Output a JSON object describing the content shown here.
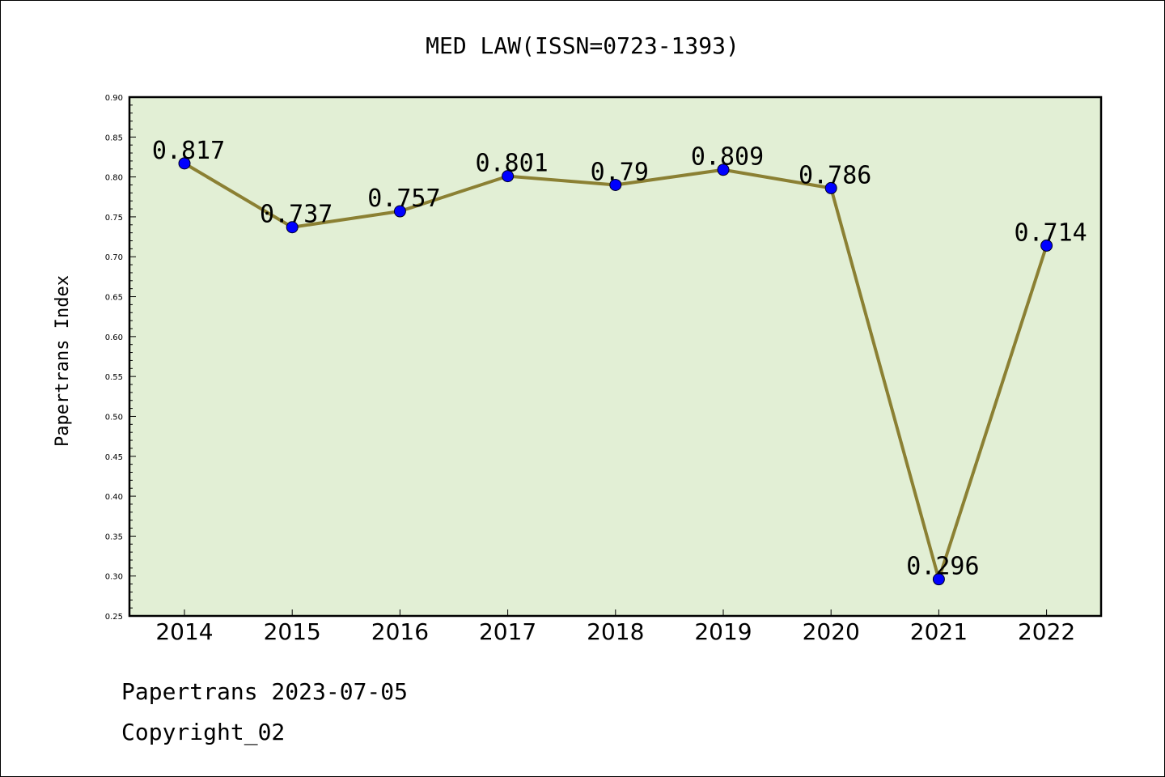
{
  "chart_data": {
    "type": "line",
    "title": "MED LAW(ISSN=0723-1393)",
    "xlabel": "",
    "ylabel": "Papertrans Index",
    "categories": [
      "2014",
      "2015",
      "2016",
      "2017",
      "2018",
      "2019",
      "2020",
      "2021",
      "2022"
    ],
    "values": [
      0.817,
      0.737,
      0.757,
      0.801,
      0.79,
      0.809,
      0.786,
      0.296,
      0.714
    ],
    "data_labels": [
      "0.817",
      "0.737",
      "0.757",
      "0.801",
      "0.79",
      "0.809",
      "0.786",
      "0.296",
      "0.714"
    ],
    "ylim": [
      0.25,
      0.9
    ],
    "yticks": [
      "0.25",
      "0.30",
      "0.35",
      "0.40",
      "0.45",
      "0.50",
      "0.55",
      "0.60",
      "0.65",
      "0.70",
      "0.75",
      "0.80",
      "0.85",
      "0.90"
    ],
    "grid": false,
    "legend": "none",
    "colors": {
      "plot_background": "#e2efd5",
      "line": "#8b8033",
      "marker": "#0000ff"
    }
  },
  "footer": {
    "line1": "Papertrans 2023-07-05",
    "line2": "Copyright_02"
  }
}
